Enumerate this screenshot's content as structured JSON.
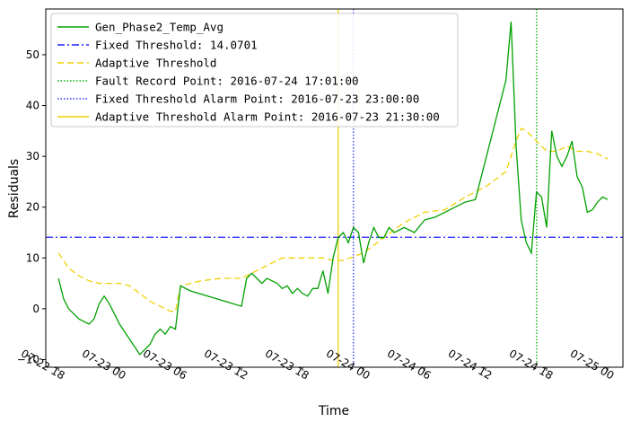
{
  "chart_data": {
    "type": "line",
    "xlabel": "Time",
    "ylabel": "Residuals",
    "x_range": [
      "2016-07-22 16:45",
      "2016-07-25 01:30"
    ],
    "ylim": [
      -11.5,
      59
    ],
    "grid": false,
    "legend_placement": "top-left",
    "x_ticks": [
      {
        "t": "2016-07-22 18:00",
        "label": "07-22 18"
      },
      {
        "t": "2016-07-23 00:00",
        "label": "07-23 00"
      },
      {
        "t": "2016-07-23 06:00",
        "label": "07-23 06"
      },
      {
        "t": "2016-07-23 12:00",
        "label": "07-23 12"
      },
      {
        "t": "2016-07-23 18:00",
        "label": "07-23 18"
      },
      {
        "t": "2016-07-24 00:00",
        "label": "07-24 00"
      },
      {
        "t": "2016-07-24 06:00",
        "label": "07-24 06"
      },
      {
        "t": "2016-07-24 12:00",
        "label": "07-24 12"
      },
      {
        "t": "2016-07-24 18:00",
        "label": "07-24 18"
      },
      {
        "t": "2016-07-25 00:00",
        "label": "07-25 00"
      }
    ],
    "y_ticks": [
      {
        "v": -10,
        "label": "−10"
      },
      {
        "v": 0,
        "label": "0"
      },
      {
        "v": 10,
        "label": "10"
      },
      {
        "v": 20,
        "label": "20"
      },
      {
        "v": 30,
        "label": "30"
      },
      {
        "v": 40,
        "label": "40"
      },
      {
        "v": 50,
        "label": "50"
      }
    ],
    "series": [
      {
        "name": "Gen_Phase2_Temp_Avg",
        "color": "#00a000",
        "style": "solid",
        "x": [
          "2016-07-22 18:00",
          "2016-07-22 18:30",
          "2016-07-22 19:00",
          "2016-07-22 19:30",
          "2016-07-22 20:00",
          "2016-07-22 20:30",
          "2016-07-22 21:00",
          "2016-07-22 21:30",
          "2016-07-22 22:00",
          "2016-07-22 22:30",
          "2016-07-22 23:00",
          "2016-07-22 23:30",
          "2016-07-23 00:00",
          "2016-07-23 02:00",
          "2016-07-23 03:00",
          "2016-07-23 03:30",
          "2016-07-23 04:00",
          "2016-07-23 04:30",
          "2016-07-23 05:00",
          "2016-07-23 05:30",
          "2016-07-23 06:00",
          "2016-07-23 07:00",
          "2016-07-23 12:00",
          "2016-07-23 12:30",
          "2016-07-23 13:00",
          "2016-07-23 13:30",
          "2016-07-23 14:00",
          "2016-07-23 14:30",
          "2016-07-23 15:00",
          "2016-07-23 15:30",
          "2016-07-23 16:00",
          "2016-07-23 16:30",
          "2016-07-23 17:00",
          "2016-07-23 17:30",
          "2016-07-23 18:00",
          "2016-07-23 18:30",
          "2016-07-23 19:00",
          "2016-07-23 19:30",
          "2016-07-23 20:00",
          "2016-07-23 20:30",
          "2016-07-23 21:00",
          "2016-07-23 21:30",
          "2016-07-23 22:00",
          "2016-07-23 22:30",
          "2016-07-23 23:00",
          "2016-07-23 23:30",
          "2016-07-24 00:00",
          "2016-07-24 00:30",
          "2016-07-24 01:00",
          "2016-07-24 01:30",
          "2016-07-24 02:00",
          "2016-07-24 02:30",
          "2016-07-24 03:00",
          "2016-07-24 04:00",
          "2016-07-24 05:00",
          "2016-07-24 06:00",
          "2016-07-24 07:00",
          "2016-07-24 08:00",
          "2016-07-24 09:00",
          "2016-07-24 10:00",
          "2016-07-24 11:00",
          "2016-07-24 14:00",
          "2016-07-24 14:30",
          "2016-07-24 15:00",
          "2016-07-24 15:30",
          "2016-07-24 16:00",
          "2016-07-24 16:30",
          "2016-07-24 17:00",
          "2016-07-24 17:30",
          "2016-07-24 18:00",
          "2016-07-24 18:30",
          "2016-07-24 19:00",
          "2016-07-24 19:30",
          "2016-07-24 20:00",
          "2016-07-24 20:30",
          "2016-07-24 21:00",
          "2016-07-24 21:30",
          "2016-07-24 22:00",
          "2016-07-24 22:30",
          "2016-07-24 23:00",
          "2016-07-24 23:30",
          "2016-07-25 00:00"
        ],
        "y": [
          6,
          2,
          0,
          -1,
          -2,
          -2.5,
          -3,
          -2,
          1,
          2.5,
          1,
          -1,
          -3,
          -9,
          -7,
          -5,
          -4,
          -5,
          -3.5,
          -4,
          4.5,
          3.5,
          0.5,
          6,
          7,
          6,
          5,
          6,
          5.5,
          5,
          4,
          4.5,
          3,
          4,
          3,
          2.5,
          4,
          4,
          7.5,
          3,
          10,
          14,
          15,
          13,
          16,
          15,
          9,
          13,
          16,
          14,
          14,
          16,
          15,
          16,
          15,
          17.5,
          18,
          19,
          20,
          21,
          21.5,
          45,
          56.5,
          32,
          17.5,
          13,
          11,
          23,
          22,
          16,
          35,
          30,
          28,
          30,
          33,
          26,
          24,
          19,
          19.5,
          21,
          22,
          21.5
        ]
      },
      {
        "name": "Fixed Threshold: 14.0701",
        "color": "#2020ff",
        "style": "dashdot",
        "hline": 14.0701
      },
      {
        "name": "Adaptive Threshold",
        "color": "#f0d000",
        "style": "dashed",
        "x": [
          "2016-07-22 18:00",
          "2016-07-22 19:00",
          "2016-07-22 20:00",
          "2016-07-22 21:00",
          "2016-07-22 22:00",
          "2016-07-22 23:00",
          "2016-07-23 00:00",
          "2016-07-23 01:00",
          "2016-07-23 02:00",
          "2016-07-23 03:00",
          "2016-07-23 04:00",
          "2016-07-23 05:00",
          "2016-07-23 05:30",
          "2016-07-23 06:00",
          "2016-07-23 07:00",
          "2016-07-23 08:00",
          "2016-07-23 10:00",
          "2016-07-23 12:00",
          "2016-07-23 14:00",
          "2016-07-23 16:00",
          "2016-07-23 18:00",
          "2016-07-23 20:00",
          "2016-07-23 21:00",
          "2016-07-23 22:00",
          "2016-07-24 00:00",
          "2016-07-24 02:00",
          "2016-07-24 04:00",
          "2016-07-24 06:00",
          "2016-07-24 08:00",
          "2016-07-24 10:00",
          "2016-07-24 12:00",
          "2016-07-24 14:00",
          "2016-07-24 15:00",
          "2016-07-24 15:30",
          "2016-07-24 16:00",
          "2016-07-24 17:00",
          "2016-07-24 18:00",
          "2016-07-24 19:00",
          "2016-07-24 20:00",
          "2016-07-24 21:00",
          "2016-07-24 22:00",
          "2016-07-24 23:00",
          "2016-07-25 00:00"
        ],
        "y": [
          11,
          8,
          6.5,
          5.5,
          5,
          5,
          5,
          4.5,
          3,
          1.5,
          0.5,
          -0.5,
          -0.5,
          4.5,
          5,
          5.5,
          6,
          6,
          8,
          10,
          10,
          10,
          9.5,
          9.5,
          11,
          14,
          17,
          19,
          19.5,
          22,
          24,
          27,
          33,
          35.5,
          35,
          33,
          31,
          31,
          32,
          31,
          31,
          30.5,
          29.5
        ]
      },
      {
        "name": "Fault Record Point: 2016-07-24 17:01:00",
        "color": "#00b000",
        "style": "dotted",
        "vline": "2016-07-24 17:01"
      },
      {
        "name": "Fixed Threshold Alarm Point: 2016-07-23 23:00:00",
        "color": "#3030ff",
        "style": "dotted",
        "vline": "2016-07-23 23:00"
      },
      {
        "name": "Adaptive Threshold Alarm Point: 2016-07-23 21:30:00",
        "color": "#f0d000",
        "style": "solid",
        "vline": "2016-07-23 21:30"
      }
    ]
  }
}
